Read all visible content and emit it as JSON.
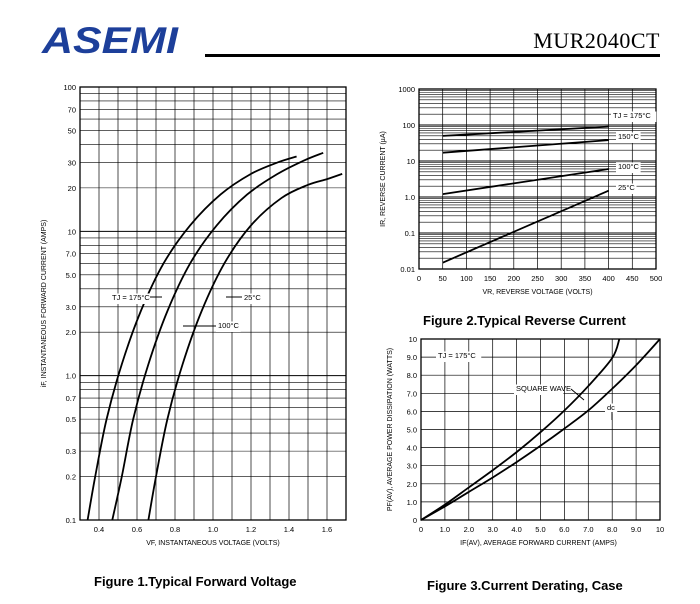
{
  "header": {
    "logo_text": "ASEMI",
    "part_number": "MUR2040CT",
    "brand_color": "#1d3f9a"
  },
  "chart_data": [
    {
      "type": "line",
      "caption": "Figure 1.Typical  Forward  Voltage",
      "xlabel": "V_F, INSTANTANEOUS VOLTAGE (VOLTS)",
      "ylabel": "i_F, INSTANTANEOUS FORWARD CURRENT (AMPS)",
      "xlim": [
        0.3,
        1.7
      ],
      "ylim": [
        0.1,
        100
      ],
      "yscale": "log",
      "xticks": [
        0.4,
        0.6,
        0.8,
        1.0,
        1.2,
        1.4,
        1.6
      ],
      "xtick_labels": [
        "0.4",
        "0.6",
        "0.8",
        "1.0",
        "1.2",
        "1.4",
        "1.6"
      ],
      "yticks": [
        0.1,
        0.2,
        0.3,
        0.5,
        0.7,
        1.0,
        2.0,
        3.0,
        5.0,
        7.0,
        10,
        20,
        30,
        50,
        70,
        100
      ],
      "ytick_labels": [
        "0.1",
        "0.2",
        "0.3",
        "0.5",
        "0.7",
        "1.0",
        "2.0",
        "3.0",
        "5.0",
        "7.0",
        "10",
        "20",
        "30",
        "50",
        "70",
        "100"
      ],
      "grid": true,
      "series": [
        {
          "name": "T_J = 175°C",
          "x": [
            0.34,
            0.38,
            0.44,
            0.52,
            0.62,
            0.74,
            0.88,
            1.04,
            1.2,
            1.34,
            1.44
          ],
          "y": [
            0.1,
            0.2,
            0.5,
            1.2,
            2.8,
            6.0,
            11.0,
            18.0,
            25.0,
            30.0,
            33.0
          ]
        },
        {
          "name": "100°C",
          "x": [
            0.47,
            0.52,
            0.58,
            0.66,
            0.76,
            0.88,
            1.02,
            1.18,
            1.34,
            1.48,
            1.58
          ],
          "y": [
            0.1,
            0.2,
            0.5,
            1.2,
            2.8,
            6.0,
            11.0,
            18.0,
            25.0,
            31.0,
            35.0
          ]
        },
        {
          "name": "25°C",
          "x": [
            0.66,
            0.7,
            0.76,
            0.84,
            0.94,
            1.06,
            1.2,
            1.36,
            1.5,
            1.6,
            1.68
          ],
          "y": [
            0.1,
            0.2,
            0.5,
            1.2,
            2.8,
            6.0,
            11.0,
            17.0,
            21.0,
            23.0,
            25.0
          ]
        }
      ],
      "annotations": [
        "T_J = 175°C",
        "100°C",
        "25°C"
      ]
    },
    {
      "type": "line",
      "caption": "Figure 2.Typical  Reverse  Current",
      "xlabel": "V_R, REVERSE VOLTAGE (VOLTS)",
      "ylabel": "I_R, REVERSE CURRENT (µA)",
      "xlim": [
        0,
        500
      ],
      "ylim": [
        0.01,
        1000
      ],
      "yscale": "log",
      "xticks": [
        0,
        50,
        100,
        150,
        200,
        250,
        300,
        350,
        400,
        450,
        500
      ],
      "xtick_labels": [
        "0",
        "50",
        "100",
        "150",
        "200",
        "250",
        "300",
        "350",
        "400",
        "450",
        "500"
      ],
      "yticks": [
        0.01,
        0.1,
        1.0,
        10,
        100,
        1000
      ],
      "ytick_labels": [
        "0.01",
        "0.1",
        "1.0",
        "10",
        "100",
        "1000"
      ],
      "grid": true,
      "series": [
        {
          "name": "T_J = 175°C",
          "x": [
            50,
            400
          ],
          "y": [
            50,
            90
          ]
        },
        {
          "name": "150°C",
          "x": [
            50,
            400
          ],
          "y": [
            17,
            38
          ]
        },
        {
          "name": "100°C",
          "x": [
            50,
            400
          ],
          "y": [
            1.2,
            6.0
          ]
        },
        {
          "name": "25°C",
          "x": [
            50,
            400
          ],
          "y": [
            0.015,
            1.5
          ]
        }
      ],
      "annotations": [
        "T_J = 175°C",
        "150°C",
        "100°C",
        "25°C"
      ]
    },
    {
      "type": "line",
      "caption": "Figure 3.Current  Derating,  Case",
      "xlabel": "I_F(AV), AVERAGE FORWARD CURRENT (AMPS)",
      "ylabel": "P_F(AV), AVERAGE POWER DISSIPATION (WATTS)",
      "xlim": [
        0,
        10
      ],
      "ylim": [
        0,
        10
      ],
      "xticks": [
        0,
        1.0,
        2.0,
        3.0,
        4.0,
        5.0,
        6.0,
        7.0,
        8.0,
        9.0,
        10
      ],
      "xtick_labels": [
        "0",
        "1.0",
        "2.0",
        "3.0",
        "4.0",
        "5.0",
        "6.0",
        "7.0",
        "8.0",
        "9.0",
        "10"
      ],
      "yticks": [
        0,
        1.0,
        2.0,
        3.0,
        4.0,
        5.0,
        6.0,
        7.0,
        8.0,
        9.0,
        10
      ],
      "ytick_labels": [
        "0",
        "1.0",
        "2.0",
        "3.0",
        "4.0",
        "5.0",
        "6.0",
        "7.0",
        "8.0",
        "9.0",
        "10"
      ],
      "grid": true,
      "series": [
        {
          "name": "SQUARE WAVE",
          "x": [
            0,
            1,
            2,
            3,
            4,
            5,
            6,
            7,
            8,
            8.3
          ],
          "y": [
            0,
            0.85,
            1.8,
            2.75,
            3.75,
            4.85,
            6.05,
            7.4,
            8.95,
            10.0
          ]
        },
        {
          "name": "dc",
          "x": [
            0,
            1,
            2,
            3,
            4,
            5,
            6,
            7,
            8,
            9,
            10
          ],
          "y": [
            0,
            0.75,
            1.55,
            2.35,
            3.2,
            4.1,
            5.05,
            6.05,
            7.25,
            8.55,
            10.0
          ]
        }
      ],
      "annotations": [
        "T_J = 175°C",
        "SQUARE WAVE",
        "dc"
      ]
    }
  ]
}
